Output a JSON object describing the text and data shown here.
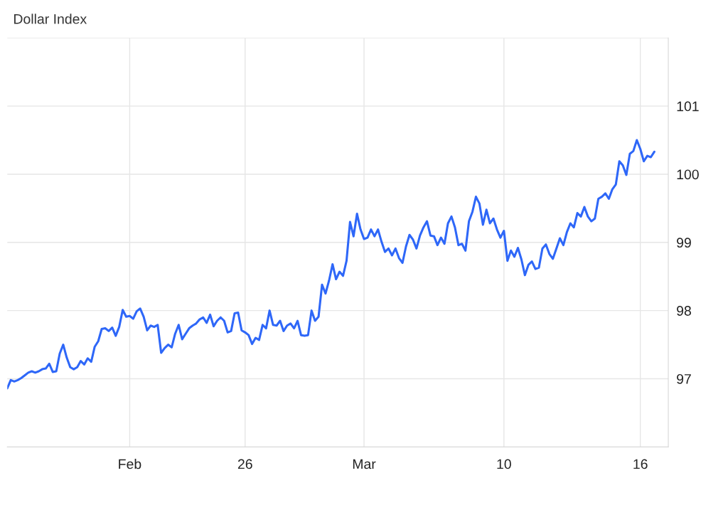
{
  "chart_data": {
    "type": "line",
    "title": "Dollar Index",
    "categories": [
      null,
      null,
      null,
      null,
      null,
      null,
      null,
      null,
      null,
      null,
      null,
      null,
      null,
      null,
      null,
      null,
      null,
      null,
      null,
      null,
      null,
      null,
      null,
      null,
      null,
      null,
      null,
      null,
      null,
      null,
      null,
      null,
      null,
      null,
      null,
      "Feb",
      null,
      null,
      null,
      null,
      null,
      null,
      null,
      null,
      null,
      null,
      null,
      null,
      null,
      null,
      null,
      null,
      null,
      null,
      null,
      null,
      null,
      null,
      null,
      null,
      null,
      null,
      null,
      null,
      null,
      null,
      null,
      null,
      "26",
      null,
      null,
      null,
      null,
      null,
      null,
      null,
      null,
      null,
      null,
      null,
      null,
      null,
      null,
      null,
      null,
      null,
      null,
      null,
      null,
      null,
      null,
      null,
      null,
      null,
      null,
      null,
      null,
      null,
      null,
      null,
      null,
      null,
      "Mar",
      null,
      null,
      null,
      null,
      null,
      null,
      null,
      null,
      null,
      null,
      null,
      null,
      null,
      null,
      null,
      null,
      null,
      null,
      null,
      null,
      null,
      null,
      null,
      null,
      null,
      null,
      null,
      null,
      null,
      null,
      null,
      null,
      null,
      null,
      null,
      null,
      null,
      null,
      null,
      "10",
      null,
      null,
      null,
      null,
      null,
      null,
      null,
      null,
      null,
      null,
      null,
      null,
      null,
      null,
      null,
      null,
      null,
      null,
      null,
      null,
      null,
      null,
      null,
      null,
      null,
      null,
      null,
      null,
      null,
      null,
      null,
      null,
      null,
      null,
      null,
      null,
      null,
      null,
      "16",
      null,
      null,
      null,
      null
    ],
    "ylim": [
      96,
      102
    ],
    "yticks": [
      97,
      98,
      99,
      100,
      101,
      {
        "value": 102,
        "label": null
      }
    ],
    "grid": true,
    "legend": false,
    "series": [
      {
        "color": "#2e67f8",
        "values": [
          96.86,
          96.98,
          96.96,
          96.98,
          97.01,
          97.05,
          97.09,
          97.11,
          97.09,
          97.11,
          97.14,
          97.15,
          97.22,
          97.1,
          97.11,
          97.37,
          97.5,
          97.31,
          97.17,
          97.14,
          97.17,
          97.26,
          97.21,
          97.3,
          97.25,
          97.47,
          97.55,
          97.73,
          97.74,
          97.7,
          97.75,
          97.63,
          97.76,
          98.01,
          97.91,
          97.92,
          97.88,
          97.99,
          98.03,
          97.91,
          97.71,
          97.78,
          97.76,
          97.79,
          97.38,
          97.45,
          97.5,
          97.46,
          97.66,
          97.79,
          97.58,
          97.66,
          97.74,
          97.78,
          97.81,
          97.87,
          97.9,
          97.82,
          97.94,
          97.77,
          97.85,
          97.9,
          97.85,
          97.68,
          97.7,
          97.96,
          97.97,
          97.71,
          97.68,
          97.64,
          97.51,
          97.6,
          97.57,
          97.79,
          97.74,
          98.0,
          97.79,
          97.78,
          97.85,
          97.7,
          97.78,
          97.81,
          97.74,
          97.85,
          97.64,
          97.63,
          97.64,
          98.0,
          97.85,
          97.91,
          98.38,
          98.25,
          98.44,
          98.68,
          98.46,
          98.57,
          98.51,
          98.73,
          99.3,
          99.09,
          99.42,
          99.19,
          99.05,
          99.07,
          99.19,
          99.09,
          99.19,
          99.01,
          98.86,
          98.91,
          98.81,
          98.91,
          98.77,
          98.7,
          98.94,
          99.11,
          99.04,
          98.91,
          99.1,
          99.22,
          99.31,
          99.1,
          99.09,
          98.96,
          99.07,
          98.98,
          99.28,
          99.38,
          99.22,
          98.96,
          98.98,
          98.88,
          99.31,
          99.45,
          99.67,
          99.57,
          99.26,
          99.48,
          99.28,
          99.35,
          99.19,
          99.07,
          99.17,
          98.73,
          98.88,
          98.79,
          98.92,
          98.75,
          98.52,
          98.67,
          98.72,
          98.61,
          98.63,
          98.91,
          98.97,
          98.83,
          98.76,
          98.91,
          99.06,
          98.96,
          99.15,
          99.28,
          99.22,
          99.43,
          99.38,
          99.52,
          99.38,
          99.31,
          99.35,
          99.64,
          99.67,
          99.72,
          99.64,
          99.78,
          99.85,
          100.19,
          100.13,
          99.99,
          100.3,
          100.34,
          100.5,
          100.37,
          100.19,
          100.27,
          100.25,
          100.33
        ]
      }
    ]
  }
}
